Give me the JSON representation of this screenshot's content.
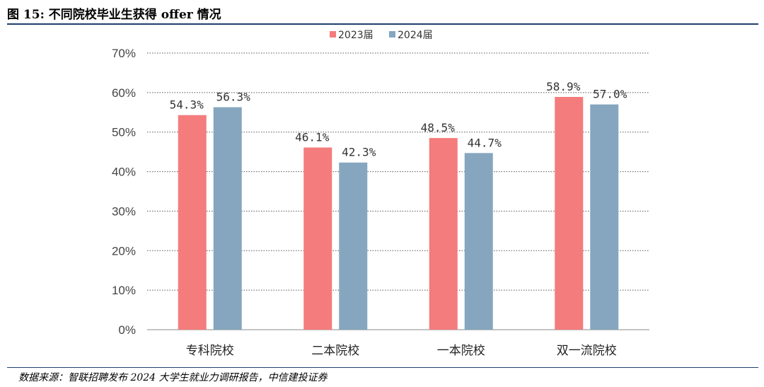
{
  "figure_title": "图 15: 不同院校毕业生获得 offer 情况",
  "source_note": "数据来源：智联招聘发布 2024 大学生就业力调研报告，中信建投证券",
  "colors": {
    "rule": "#1f3f6e",
    "series_2023": "#f47c7c",
    "series_2024": "#85a6be",
    "grid": "#555555"
  },
  "chart_data": {
    "type": "bar",
    "categories": [
      "专科院校",
      "二本院校",
      "一本院校",
      "双一流院校"
    ],
    "series": [
      {
        "name": "2023届",
        "values": [
          54.3,
          46.1,
          48.5,
          58.9
        ],
        "labels": [
          "54.3%",
          "46.1%",
          "48.5%",
          "58.9%"
        ]
      },
      {
        "name": "2024届",
        "values": [
          56.3,
          42.3,
          44.7,
          57.0
        ],
        "labels": [
          "56.3%",
          "42.3%",
          "44.7%",
          "57.0%"
        ]
      }
    ],
    "ylim": [
      0,
      70
    ],
    "yticks": [
      "0%",
      "10%",
      "20%",
      "30%",
      "40%",
      "50%",
      "60%",
      "70%"
    ],
    "grid": true,
    "legend_position": "top-center",
    "xlabel": "",
    "ylabel": ""
  }
}
